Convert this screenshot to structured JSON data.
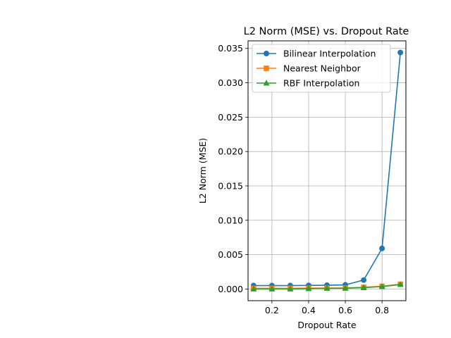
{
  "chart_data": {
    "type": "line",
    "title": "L2 Norm (MSE) vs. Dropout Rate",
    "xlabel": "Dropout Rate",
    "ylabel": "L2 Norm (MSE)",
    "x": [
      0.1,
      0.2,
      0.3,
      0.4,
      0.5,
      0.6,
      0.7,
      0.8,
      0.9
    ],
    "xlim": [
      0.07,
      0.93
    ],
    "ylim": [
      -0.0017,
      0.0361
    ],
    "xticks": [
      0.2,
      0.4,
      0.6,
      0.8
    ],
    "xtick_labels": [
      "0.2",
      "0.4",
      "0.6",
      "0.8"
    ],
    "yticks": [
      0.0,
      0.005,
      0.01,
      0.015,
      0.02,
      0.025,
      0.03,
      0.035
    ],
    "ytick_labels": [
      "0.000",
      "0.005",
      "0.010",
      "0.015",
      "0.020",
      "0.025",
      "0.030",
      "0.035"
    ],
    "grid": true,
    "legend_position": "top-right",
    "series": [
      {
        "name": "Bilinear Interpolation",
        "color": "#1f77b4",
        "marker": "circle",
        "values": [
          0.0005,
          0.0005,
          0.0005,
          0.00052,
          0.00055,
          0.0006,
          0.0013,
          0.0059,
          0.0344
        ]
      },
      {
        "name": "Nearest Neighbor",
        "color": "#ff7f0e",
        "marker": "square",
        "values": [
          0.0001,
          0.0001,
          0.0001,
          0.00012,
          0.00013,
          0.00015,
          0.00025,
          0.0004,
          0.0007
        ]
      },
      {
        "name": "RBF Interpolation",
        "color": "#2ca02c",
        "marker": "triangle",
        "values": [
          0.0,
          0.0,
          0.0,
          5e-05,
          0.0001,
          0.00012,
          0.0002,
          0.00035,
          0.00065
        ]
      }
    ]
  }
}
